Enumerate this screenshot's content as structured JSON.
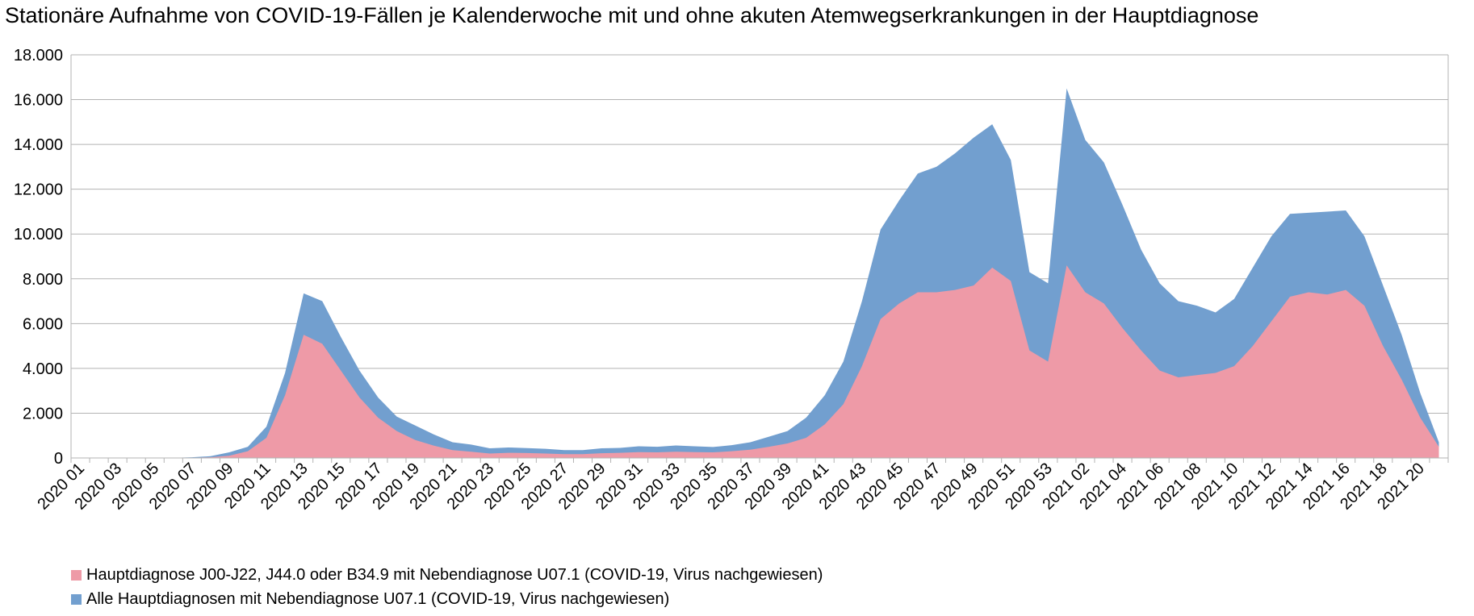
{
  "chart_data": {
    "type": "area",
    "stacked": false,
    "title": "Stationäre Aufnahme von COVID-19-Fällen je Kalenderwoche mit und ohne akuten Atemwegserkrankungen in der Hauptdiagnose",
    "xlabel": "",
    "ylabel": "",
    "ylim": [
      0,
      18000
    ],
    "yticks": [
      "0",
      "2.000",
      "4.000",
      "6.000",
      "8.000",
      "10.000",
      "12.000",
      "14.000",
      "16.000",
      "18.000"
    ],
    "ytick_values": [
      0,
      2000,
      4000,
      6000,
      8000,
      10000,
      12000,
      14000,
      16000,
      18000
    ],
    "grid": true,
    "legend_position": "bottom",
    "categories": [
      "2020 01",
      "2020 02",
      "2020 03",
      "2020 04",
      "2020 05",
      "2020 06",
      "2020 07",
      "2020 08",
      "2020 09",
      "2020 10",
      "2020 11",
      "2020 12",
      "2020 13",
      "2020 14",
      "2020 15",
      "2020 16",
      "2020 17",
      "2020 18",
      "2020 19",
      "2020 20",
      "2020 21",
      "2020 22",
      "2020 23",
      "2020 24",
      "2020 25",
      "2020 26",
      "2020 27",
      "2020 28",
      "2020 29",
      "2020 30",
      "2020 31",
      "2020 32",
      "2020 33",
      "2020 34",
      "2020 35",
      "2020 36",
      "2020 37",
      "2020 38",
      "2020 39",
      "2020 40",
      "2020 41",
      "2020 42",
      "2020 43",
      "2020 44",
      "2020 45",
      "2020 46",
      "2020 47",
      "2020 48",
      "2020 49",
      "2020 50",
      "2020 51",
      "2020 52",
      "2020 53",
      "2021 01",
      "2021 02",
      "2021 03",
      "2021 04",
      "2021 05",
      "2021 06",
      "2021 07",
      "2021 08",
      "2021 09",
      "2021 10",
      "2021 11",
      "2021 12",
      "2021 13",
      "2021 14",
      "2021 15",
      "2021 16",
      "2021 17",
      "2021 18",
      "2021 19",
      "2021 20",
      "2021 21"
    ],
    "visible_tick_labels": [
      "2020 01",
      "2020 03",
      "2020 05",
      "2020 07",
      "2020 09",
      "2020 11",
      "2020 13",
      "2020 15",
      "2020 17",
      "2020 19",
      "2020 21",
      "2020 23",
      "2020 25",
      "2020 27",
      "2020 29",
      "2020 31",
      "2020 33",
      "2020 35",
      "2020 37",
      "2020 39",
      "2020 41",
      "2020 43",
      "2020 45",
      "2020 47",
      "2020 49",
      "2020 51",
      "2020 53",
      "2021 02",
      "2021 04",
      "2021 06",
      "2021 08",
      "2021 10",
      "2021 12",
      "2021 14",
      "2021 16",
      "2021 18",
      "2021 20"
    ],
    "series": [
      {
        "name": "Alle Hauptdiagnosen mit Nebendiagnose U07.1 (COVID-19, Virus nachgewiesen)",
        "color": "#729fcf",
        "values": [
          0,
          0,
          0,
          0,
          0,
          10,
          30,
          80,
          250,
          500,
          1400,
          3800,
          7350,
          7000,
          5400,
          3900,
          2700,
          1850,
          1450,
          1050,
          700,
          600,
          430,
          470,
          440,
          410,
          350,
          350,
          430,
          450,
          520,
          500,
          560,
          520,
          490,
          570,
          700,
          950,
          1200,
          1800,
          2800,
          4300,
          7000,
          10200,
          11500,
          12700,
          13000,
          13600,
          14300,
          14900,
          13300,
          8300,
          7800,
          16500,
          14200,
          13200,
          11300,
          9300,
          7800,
          7000,
          6800,
          6500,
          7100,
          8500,
          9900,
          10900,
          10950,
          11000,
          11050,
          9900,
          7700,
          5500,
          2900,
          700
        ]
      },
      {
        "name": "Hauptdiagnose J00-J22, J44.0 oder B34.9 mit Nebendiagnose U07.1 (COVID-19, Virus nachgewiesen)",
        "color": "#ee9aa7",
        "values": [
          0,
          0,
          0,
          0,
          0,
          0,
          10,
          30,
          100,
          300,
          900,
          2800,
          5500,
          5100,
          3900,
          2700,
          1800,
          1200,
          800,
          550,
          350,
          280,
          200,
          230,
          220,
          200,
          170,
          170,
          210,
          230,
          260,
          250,
          280,
          260,
          250,
          300,
          370,
          500,
          650,
          900,
          1500,
          2400,
          4100,
          6200,
          6900,
          7400,
          7400,
          7500,
          7700,
          8500,
          7900,
          4800,
          4300,
          8600,
          7400,
          6900,
          5800,
          4800,
          3900,
          3600,
          3700,
          3800,
          4100,
          5000,
          6100,
          7200,
          7400,
          7300,
          7500,
          6800,
          5000,
          3500,
          1800,
          500
        ]
      }
    ]
  }
}
